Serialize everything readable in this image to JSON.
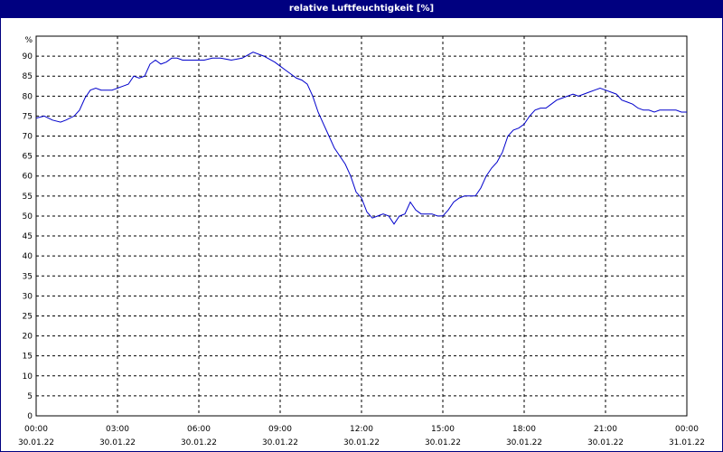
{
  "chart_data": {
    "type": "line",
    "title": "relative Luftfeuchtigkeit [%]",
    "ylabel": "%",
    "ylim": [
      0,
      95
    ],
    "yticks": [
      0,
      5,
      10,
      15,
      20,
      25,
      30,
      35,
      40,
      45,
      50,
      55,
      60,
      65,
      70,
      75,
      80,
      85,
      90
    ],
    "xlim_hours": [
      0,
      24
    ],
    "xticks": [
      {
        "time": "00:00",
        "date": "30.01.22"
      },
      {
        "time": "03:00",
        "date": "30.01.22"
      },
      {
        "time": "06:00",
        "date": "30.01.22"
      },
      {
        "time": "09:00",
        "date": "30.01.22"
      },
      {
        "time": "12:00",
        "date": "30.01.22"
      },
      {
        "time": "15:00",
        "date": "30.01.22"
      },
      {
        "time": "18:00",
        "date": "30.01.22"
      },
      {
        "time": "21:00",
        "date": "30.01.22"
      },
      {
        "time": "00:00",
        "date": "31.01.22"
      }
    ],
    "grid": true,
    "series_color": "#0000cc",
    "series": [
      {
        "x": [
          0.0,
          0.3,
          0.6,
          0.9,
          1.1,
          1.4,
          1.6,
          1.8,
          2.0,
          2.2,
          2.4,
          2.6,
          2.8,
          3.0,
          3.2,
          3.4,
          3.6,
          3.8,
          4.0,
          4.2,
          4.4,
          4.6,
          4.8,
          5.0,
          5.2,
          5.4,
          5.6,
          5.9,
          6.2,
          6.5,
          6.8,
          7.2,
          7.6,
          8.0,
          8.4,
          8.8,
          9.0,
          9.2,
          9.4,
          9.6,
          9.8,
          10.0,
          10.2,
          10.4,
          10.6,
          10.8,
          11.0,
          11.2,
          11.4,
          11.6,
          11.8,
          12.0,
          12.2,
          12.4,
          12.6,
          12.8,
          13.0,
          13.2,
          13.4,
          13.6,
          13.8,
          14.0,
          14.2,
          14.4,
          14.6,
          14.8,
          15.0,
          15.2,
          15.4,
          15.6,
          15.8,
          16.0,
          16.2,
          16.4,
          16.6,
          16.8,
          17.0,
          17.2,
          17.4,
          17.6,
          17.8,
          18.0,
          18.2,
          18.4,
          18.6,
          18.8,
          19.0,
          19.2,
          19.4,
          19.6,
          19.8,
          20.0,
          20.2,
          20.4,
          20.6,
          20.8,
          21.0,
          21.2,
          21.4,
          21.6,
          21.8,
          22.0,
          22.2,
          22.4,
          22.6,
          22.8,
          23.0,
          23.2,
          23.4,
          23.6,
          23.8,
          24.0
        ],
        "y": [
          74.5,
          75.0,
          74.0,
          73.5,
          74.0,
          75.0,
          76.5,
          79.5,
          81.5,
          82.0,
          81.5,
          81.5,
          81.5,
          82.0,
          82.5,
          83.0,
          85.0,
          84.5,
          85.0,
          88.0,
          89.0,
          88.0,
          88.5,
          89.5,
          89.5,
          89.0,
          89.0,
          89.0,
          89.0,
          89.5,
          89.5,
          89.0,
          89.5,
          91.0,
          90.0,
          88.5,
          87.5,
          86.5,
          85.5,
          84.5,
          84.0,
          83.0,
          80.0,
          76.0,
          73.0,
          70.0,
          67.0,
          65.0,
          63.0,
          60.0,
          56.0,
          54.5,
          51.0,
          49.5,
          50.0,
          50.5,
          50.0,
          48.0,
          50.0,
          50.5,
          53.5,
          51.5,
          50.5,
          50.5,
          50.5,
          50.0,
          50.0,
          51.5,
          53.5,
          54.5,
          55.0,
          55.0,
          55.0,
          57.0,
          60.0,
          62.0,
          63.5,
          66.0,
          70.0,
          71.5,
          72.0,
          73.0,
          75.0,
          76.5,
          77.0,
          77.0,
          78.0,
          79.0,
          79.5,
          80.0,
          80.5,
          80.0,
          80.5,
          81.0,
          81.5,
          82.0,
          81.5,
          81.0,
          80.5,
          79.0,
          78.5,
          78.0,
          77.0,
          76.5,
          76.5,
          76.0,
          76.5,
          76.5,
          76.5,
          76.5,
          76.0,
          76.0
        ]
      }
    ]
  }
}
